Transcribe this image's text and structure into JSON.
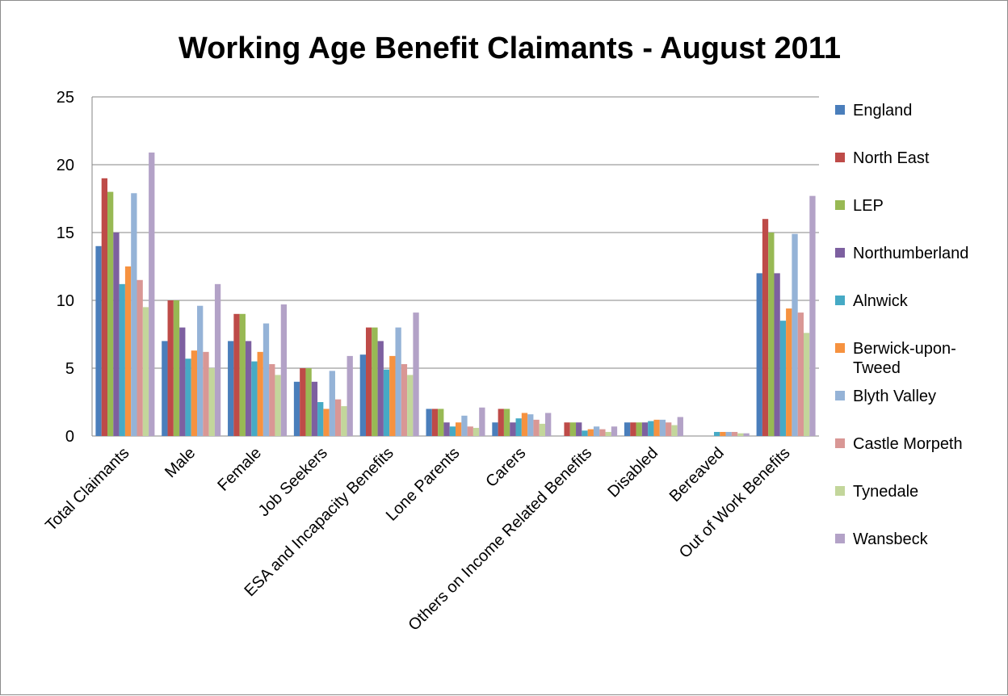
{
  "chart_data": {
    "type": "bar",
    "title": "Working Age Benefit Claimants - August 2011",
    "xlabel": "",
    "ylabel": "",
    "ylim": [
      0,
      25
    ],
    "yticks": [
      0,
      5,
      10,
      15,
      20,
      25
    ],
    "grid": true,
    "legend_position": "right",
    "categories": [
      "Total Claimants",
      "Male",
      "Female",
      "Job Seekers",
      "ESA and Incapacity Benefits",
      "Lone Parents",
      "Carers",
      "Others on Income Related Benefits",
      "Disabled",
      "Bereaved",
      "Out of Work Benefits"
    ],
    "series": [
      {
        "name": "England",
        "color": "#4a7ebb",
        "values": [
          14,
          7,
          7,
          4,
          6,
          2,
          1,
          0,
          1,
          0,
          12
        ]
      },
      {
        "name": "North East",
        "color": "#be4b48",
        "values": [
          19,
          10,
          9,
          5,
          8,
          2,
          2,
          1,
          1,
          0,
          16
        ]
      },
      {
        "name": "LEP",
        "color": "#98b954",
        "values": [
          18,
          10,
          9,
          5,
          8,
          2,
          2,
          1,
          1,
          0,
          15
        ]
      },
      {
        "name": "Northumberland",
        "color": "#7d60a0",
        "values": [
          15,
          8,
          7,
          4,
          7,
          1,
          1,
          1,
          1,
          0,
          12
        ]
      },
      {
        "name": "Alnwick",
        "color": "#46aac5",
        "values": [
          11.2,
          5.7,
          5.5,
          2.5,
          4.9,
          0.7,
          1.3,
          0.4,
          1.1,
          0.3,
          8.5
        ]
      },
      {
        "name": "Berwick-upon-Tweed",
        "color": "#f69240",
        "values": [
          12.5,
          6.3,
          6.2,
          2.0,
          5.9,
          1.0,
          1.7,
          0.5,
          1.2,
          0.3,
          9.4
        ]
      },
      {
        "name": "Blyth Valley",
        "color": "#95b3d7",
        "values": [
          17.9,
          9.6,
          8.3,
          4.8,
          8.0,
          1.5,
          1.6,
          0.7,
          1.2,
          0.3,
          14.9
        ]
      },
      {
        "name": "Castle Morpeth",
        "color": "#d99795",
        "values": [
          11.5,
          6.2,
          5.3,
          2.7,
          5.3,
          0.7,
          1.2,
          0.5,
          1.0,
          0.3,
          9.1
        ]
      },
      {
        "name": "Tynedale",
        "color": "#c3d69b",
        "values": [
          9.5,
          5.0,
          4.5,
          2.2,
          4.5,
          0.6,
          0.9,
          0.3,
          0.8,
          0.2,
          7.6
        ]
      },
      {
        "name": "Wansbeck",
        "color": "#b3a2c7",
        "values": [
          20.9,
          11.2,
          9.7,
          5.9,
          9.1,
          2.1,
          1.7,
          0.7,
          1.4,
          0.2,
          17.7
        ]
      }
    ]
  }
}
